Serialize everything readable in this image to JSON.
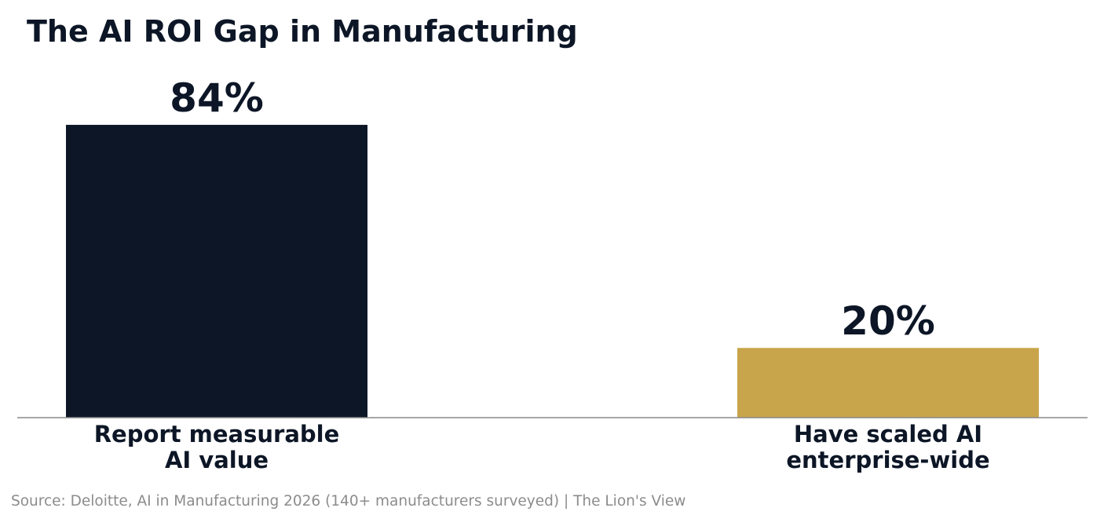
{
  "chart_data": {
    "type": "bar",
    "title": "The AI ROI Gap in Manufacturing",
    "categories": [
      [
        "Report measurable",
        "AI value"
      ],
      [
        "Have scaled AI",
        "enterprise-wide"
      ]
    ],
    "values": [
      84,
      20
    ],
    "value_labels": [
      "84%",
      "20%"
    ],
    "bar_colors": [
      "#0c1626",
      "#c8a54b"
    ],
    "ylim": [
      0,
      100
    ],
    "grid": false,
    "legend": "none",
    "xlabel": "",
    "ylabel": ""
  },
  "source": "Source: Deloitte, AI in Manufacturing 2026 (140+ manufacturers surveyed)  |  The Lion's View"
}
